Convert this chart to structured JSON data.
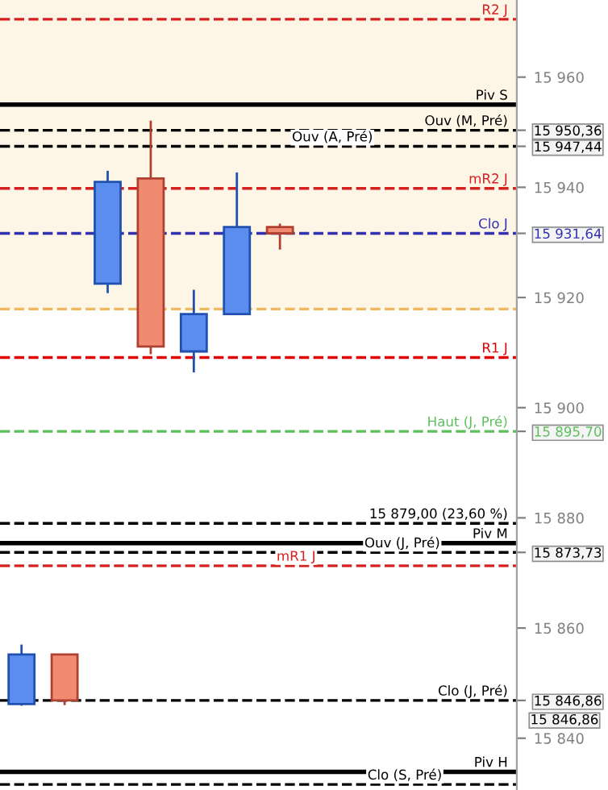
{
  "chart_data": {
    "type": "candlestick",
    "categories": [
      null,
      null,
      null,
      null,
      null,
      null,
      null,
      null,
      null,
      null,
      null,
      null
    ],
    "ohlc": [
      [
        15846.2,
        15857.0,
        15845.9,
        15855.2
      ],
      [
        15855.2,
        15855.2,
        15846.0,
        15846.86
      ],
      [
        15922.5,
        15943.0,
        15920.8,
        15941.0
      ],
      [
        15941.6,
        15952.1,
        15909.7,
        15911.1
      ],
      [
        15910.2,
        15921.4,
        15906.4,
        15917.0
      ],
      [
        15917.0,
        15942.7,
        15917.0,
        15932.8
      ],
      [
        15932.8,
        15933.4,
        15928.7,
        15931.64
      ],
      null,
      null,
      null,
      null,
      null
    ],
    "colors": [
      "#5b8def",
      "#f08a70",
      "#5b8def",
      "#f08a70",
      "#5b8def",
      "#5b8def",
      "#f08a70",
      null,
      null,
      null,
      null,
      null
    ],
    "ylim": [
      15830.6,
      15974.0
    ],
    "yticks": [
      {
        "value": 15840,
        "label": "15 840"
      },
      {
        "value": 15846.86,
        "label": "15 846,86"
      },
      {
        "value": 15860,
        "label": "15 860"
      },
      {
        "value": 15873.73,
        "label": "15 873,73"
      },
      {
        "value": 15880,
        "label": "15 880"
      },
      {
        "value": 15895.7,
        "label": "15 895,70"
      },
      {
        "value": 15900,
        "label": "15 900"
      },
      {
        "value": 15920,
        "label": "15 920"
      },
      {
        "value": 15931.64,
        "label": "15 931,64"
      },
      {
        "value": 15940,
        "label": "15 940"
      },
      {
        "value": 15947.44,
        "label": "15 947,44"
      },
      {
        "value": 15950.36,
        "label": "15 950,36"
      },
      {
        "value": 15960,
        "label": "15 960"
      }
    ],
    "bands": [
      {
        "axis": "y",
        "from": 15917.9,
        "to": 15974.0,
        "color": "#fdf5e6"
      }
    ],
    "ref_lines": [
      {
        "axis": "y",
        "value": 15970.5,
        "label": "R2 J",
        "color": "#d62020",
        "line_style": "dashed"
      },
      {
        "axis": "y",
        "value": 15955.0,
        "label": "Piv S",
        "color": "#000000",
        "line_style": "solid"
      },
      {
        "axis": "y",
        "value": 15950.36,
        "label": "Ouv (M, Pré)",
        "color": "#000000",
        "line_style": "dashed"
      },
      {
        "axis": "y",
        "value": 15947.44,
        "label": "Ouv (A, Pré)",
        "color": "#000000",
        "line_style": "dashed"
      },
      {
        "axis": "y",
        "value": 15939.8,
        "label": "mR2 J",
        "color": "#d62020",
        "line_style": "dashed"
      },
      {
        "axis": "y",
        "value": 15931.64,
        "label": "Clo J",
        "color": "#3030b0",
        "line_style": "dashed"
      },
      {
        "axis": "y",
        "value": 15917.9,
        "color": "#f0b860",
        "line_style": "dashed"
      },
      {
        "axis": "y",
        "value": 15909.1,
        "label": "R1 J",
        "color": "#e00000",
        "line_style": "dashed"
      },
      {
        "axis": "y",
        "value": 15895.7,
        "label": "Haut (J, Pré)",
        "color": "#5cbf5c",
        "line_style": "dashed"
      },
      {
        "axis": "y",
        "value": 15879.0,
        "label": "15 879,00 (23,60 %)",
        "color": "#000000",
        "line_style": "dashed"
      },
      {
        "axis": "y",
        "value": 15875.4,
        "label": "Piv M",
        "color": "#000000",
        "line_style": "solid"
      },
      {
        "axis": "y",
        "value": 15873.73,
        "label": "Ouv (J, Pré)",
        "color": "#000000",
        "line_style": "dashed"
      },
      {
        "axis": "y",
        "value": 15871.3,
        "label": "mR1 J",
        "color": "#d62020",
        "line_style": "dashed"
      },
      {
        "axis": "y",
        "value": 15846.86,
        "label": "Clo (J, Pré)",
        "color": "#000000",
        "line_style": "dashed"
      },
      {
        "axis": "y",
        "value": 15833.9,
        "label": "Piv H",
        "color": "#000000",
        "line_style": "solid"
      },
      {
        "axis": "y",
        "value": 15831.6,
        "label": "Clo (S, Pré)",
        "color": "#000000",
        "line_style": "dashed"
      }
    ],
    "annotations": [
      "15 846,86"
    ],
    "grid": false,
    "legend": false
  }
}
